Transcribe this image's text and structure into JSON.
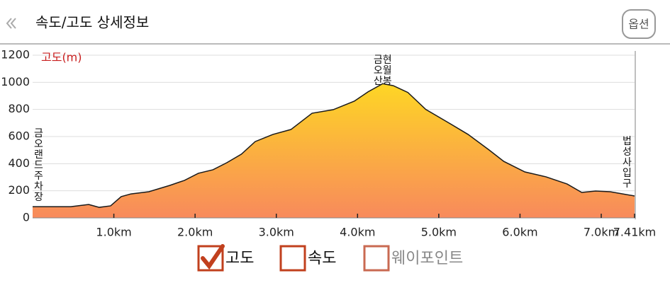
{
  "header": {
    "title": "속도/고도 상세정보",
    "button": "옵션"
  },
  "chart_data": {
    "type": "area",
    "y_label": "고도(m)",
    "x": [
      0,
      0.47,
      0.69,
      0.82,
      0.96,
      1.09,
      1.21,
      1.43,
      1.69,
      1.87,
      2.04,
      2.22,
      2.39,
      2.57,
      2.74,
      2.96,
      3.18,
      3.44,
      3.7,
      3.96,
      4.13,
      4.31,
      4.44,
      4.62,
      4.84,
      5.1,
      5.36,
      5.62,
      5.8,
      6.06,
      6.32,
      6.58,
      6.76,
      6.93,
      7.11,
      7.41
    ],
    "series": [
      {
        "name": "고도",
        "color": "#1a1a1a",
        "gradient": [
          "#ffe619",
          "#f88a5c"
        ],
        "values": [
          83,
          83,
          99,
          78,
          89,
          157,
          177,
          193,
          240,
          277,
          329,
          355,
          407,
          470,
          563,
          616,
          652,
          772,
          798,
          861,
          930,
          990,
          975,
          925,
          800,
          709,
          616,
          501,
          417,
          339,
          303,
          250,
          188,
          198,
          193,
          162
        ]
      }
    ],
    "xlim": [
      0,
      7.41
    ],
    "xticks": [
      {
        "value": 1,
        "label": "1.0km"
      },
      {
        "value": 2,
        "label": "2.0km"
      },
      {
        "value": 3,
        "label": "3.0km"
      },
      {
        "value": 4,
        "label": "4.0km"
      },
      {
        "value": 5,
        "label": "5.0km"
      },
      {
        "value": 6,
        "label": "6.0km"
      },
      {
        "value": 7,
        "label": "7.0km"
      },
      {
        "value": 7.41,
        "label": "7.41km"
      }
    ],
    "ylim": [
      0,
      1200
    ],
    "yticks": [
      0,
      200,
      400,
      600,
      800,
      1000,
      1200
    ],
    "grid": true,
    "annotations": [
      {
        "text": "금오랜드주차장",
        "x": 0,
        "vertical": true
      },
      {
        "text": "금현오월산봉",
        "x": 4.31,
        "vertical": false
      },
      {
        "text": "법성사입구",
        "x": 7.41,
        "vertical": true
      }
    ],
    "legend": [
      {
        "label": "고도",
        "checked": true,
        "enabled": true
      },
      {
        "label": "속도",
        "checked": false,
        "enabled": true
      },
      {
        "label": "웨이포인트",
        "checked": false,
        "enabled": false
      }
    ]
  }
}
